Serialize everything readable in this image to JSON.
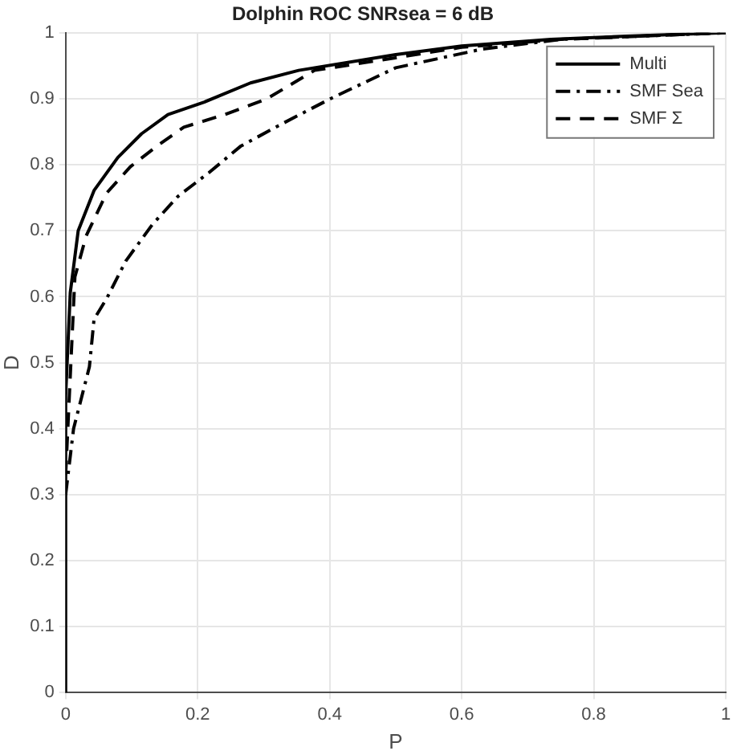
{
  "chart_data": {
    "type": "line",
    "title": "Dolphin ROC SNRsea = 6 dB",
    "xlabel": "P",
    "ylabel": "D",
    "xlim": [
      0,
      1
    ],
    "ylim": [
      0,
      1
    ],
    "xticks": [
      0,
      0.2,
      0.4,
      0.6,
      0.8,
      1
    ],
    "yticks": [
      0,
      0.1,
      0.2,
      0.3,
      0.4,
      0.5,
      0.6,
      0.7,
      0.8,
      0.9,
      1
    ],
    "grid": true,
    "legend": "top right",
    "marker": "none",
    "series": [
      {
        "name": "Multi",
        "color": "#000000",
        "line_style": "solid",
        "x": [
          0,
          0,
          0.007,
          0.019,
          0.043,
          0.079,
          0.115,
          0.155,
          0.21,
          0.28,
          0.353,
          0.5,
          0.6,
          0.735,
          0.85,
          1
        ],
        "values": [
          0,
          0.45,
          0.606,
          0.7,
          0.761,
          0.811,
          0.847,
          0.876,
          0.895,
          0.924,
          0.943,
          0.967,
          0.98,
          0.99,
          0.995,
          1
        ]
      },
      {
        "name": "SMF Sea",
        "color": "#000000",
        "line_style": "dashdot",
        "x": [
          0,
          0.012,
          0.036,
          0.043,
          0.062,
          0.091,
          0.131,
          0.17,
          0.217,
          0.265,
          0.322,
          0.401,
          0.5,
          0.63,
          0.75,
          1
        ],
        "values": [
          0.3,
          0.4,
          0.494,
          0.566,
          0.597,
          0.654,
          0.709,
          0.752,
          0.788,
          0.828,
          0.859,
          0.9,
          0.947,
          0.975,
          0.99,
          1
        ]
      },
      {
        "name": "SMF Σ",
        "color": "#000000",
        "line_style": "dashed",
        "x": [
          0,
          0.014,
          0.031,
          0.062,
          0.098,
          0.138,
          0.179,
          0.241,
          0.305,
          0.377,
          0.48,
          0.6,
          0.75,
          1
        ],
        "values": [
          0.33,
          0.63,
          0.692,
          0.757,
          0.797,
          0.828,
          0.857,
          0.876,
          0.9,
          0.943,
          0.959,
          0.978,
          0.99,
          1
        ]
      }
    ]
  }
}
